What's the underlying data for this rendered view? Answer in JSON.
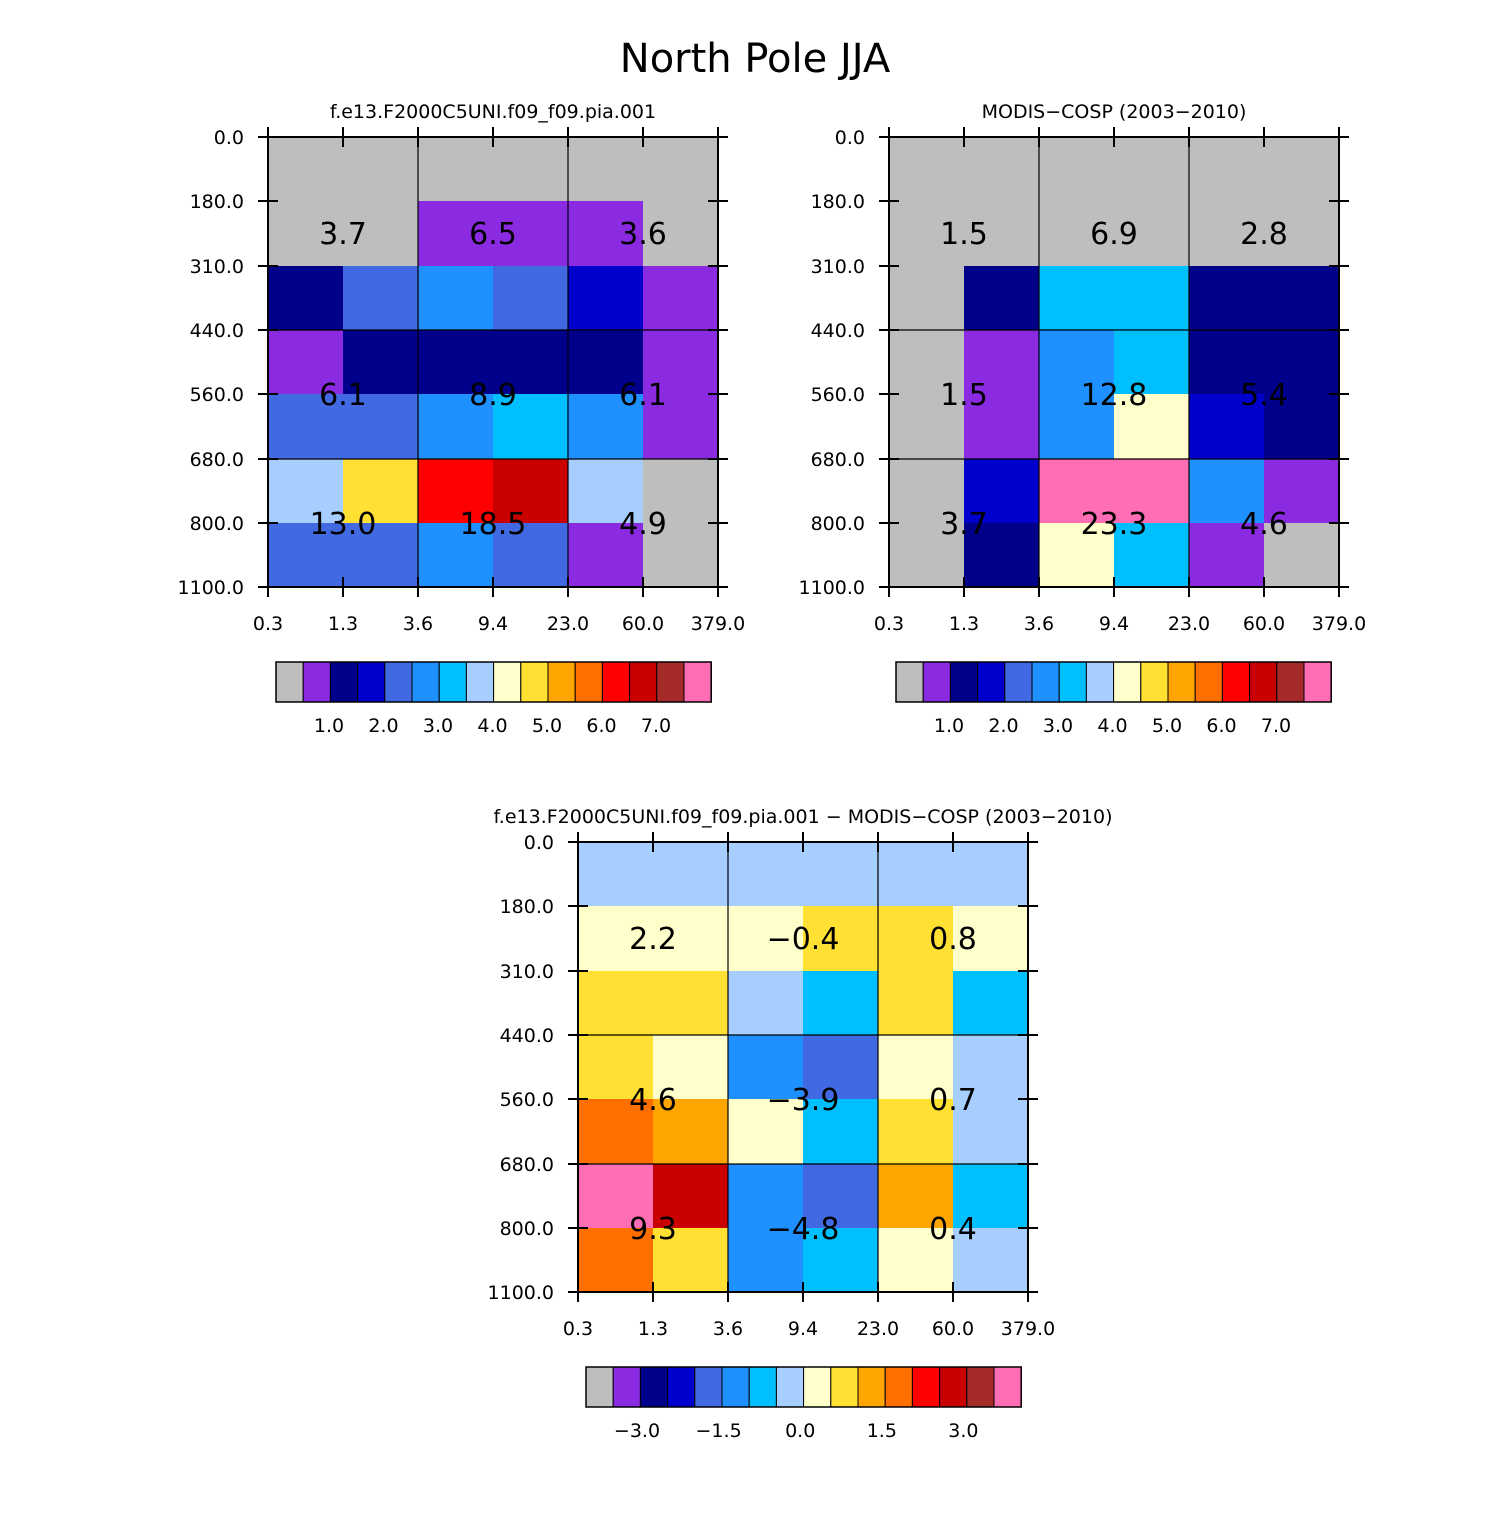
{
  "title": "North Pole JJA",
  "palette": {
    "gray": "#bebebe",
    "purple": "#8a2be2",
    "navy": "#00008b",
    "blue": "#0000cd",
    "royal": "#4169e1",
    "dodger": "#1e90ff",
    "sky": "#00bfff",
    "lightsky": "#a6cfff",
    "cream": "#ffffcc",
    "gold": "#ffe033",
    "orange": "#ffa500",
    "darkorange": "#ff6f00",
    "red": "#ff0000",
    "darkred": "#c80000",
    "brown": "#a52a2a",
    "pink": "#ff6eb4"
  },
  "colorbar_colors": [
    "gray",
    "purple",
    "navy",
    "blue",
    "royal",
    "dodger",
    "sky",
    "lightsky",
    "cream",
    "gold",
    "orange",
    "darkorange",
    "red",
    "darkred",
    "brown",
    "pink"
  ],
  "chart_data": [
    {
      "type": "heatmap",
      "title": "f.e13.F2000C5UNI.f09_f09.pia.001",
      "xticks": [
        "0.3",
        "1.3",
        "3.6",
        "9.4",
        "23.0",
        "60.0",
        "379.0"
      ],
      "yticks": [
        "0.0",
        "180.0",
        "310.0",
        "440.0",
        "560.0",
        "680.0",
        "800.0",
        "1100.0"
      ],
      "colorbar_labels": [
        "1.0",
        "2.0",
        "3.0",
        "4.0",
        "5.0",
        "6.0",
        "7.0"
      ],
      "cells": [
        [
          "gray",
          "gray",
          "gray",
          "gray",
          "gray",
          "gray"
        ],
        [
          "gray",
          "gray",
          "purple",
          "purple",
          "purple",
          "gray"
        ],
        [
          "navy",
          "royal",
          "dodger",
          "royal",
          "blue",
          "purple"
        ],
        [
          "purple",
          "navy",
          "navy",
          "navy",
          "navy",
          "purple"
        ],
        [
          "royal",
          "royal",
          "dodger",
          "sky",
          "dodger",
          "purple"
        ],
        [
          "lightsky",
          "gold",
          "red",
          "darkred",
          "lightsky",
          "gray"
        ],
        [
          "royal",
          "royal",
          "dodger",
          "royal",
          "purple",
          "gray"
        ]
      ],
      "annotations": [
        [
          "3.7",
          "6.5",
          "3.6"
        ],
        [
          "6.1",
          "8.9",
          "6.1"
        ],
        [
          "13.0",
          "18.5",
          "4.9"
        ]
      ]
    },
    {
      "type": "heatmap",
      "title": "MODIS-COSP (2003-2010)",
      "xticks": [
        "0.3",
        "1.3",
        "3.6",
        "9.4",
        "23.0",
        "60.0",
        "379.0"
      ],
      "yticks": [
        "0.0",
        "180.0",
        "310.0",
        "440.0",
        "560.0",
        "680.0",
        "800.0",
        "1100.0"
      ],
      "colorbar_labels": [
        "1.0",
        "2.0",
        "3.0",
        "4.0",
        "5.0",
        "6.0",
        "7.0"
      ],
      "cells": [
        [
          "gray",
          "gray",
          "gray",
          "gray",
          "gray",
          "gray"
        ],
        [
          "gray",
          "gray",
          "gray",
          "gray",
          "gray",
          "gray"
        ],
        [
          "gray",
          "navy",
          "sky",
          "sky",
          "navy",
          "navy"
        ],
        [
          "gray",
          "purple",
          "dodger",
          "sky",
          "navy",
          "navy"
        ],
        [
          "gray",
          "purple",
          "dodger",
          "cream",
          "blue",
          "navy"
        ],
        [
          "gray",
          "blue",
          "pink",
          "pink",
          "dodger",
          "purple"
        ],
        [
          "gray",
          "navy",
          "cream",
          "sky",
          "purple",
          "gray"
        ]
      ],
      "annotations": [
        [
          "1.5",
          "6.9",
          "2.8"
        ],
        [
          "1.5",
          "12.8",
          "5.4"
        ],
        [
          "3.7",
          "23.3",
          "4.6"
        ]
      ]
    },
    {
      "type": "heatmap",
      "title": "f.e13.F2000C5UNI.f09_f09.pia.001 - MODIS-COSP (2003-2010)",
      "xticks": [
        "0.3",
        "1.3",
        "3.6",
        "9.4",
        "23.0",
        "60.0",
        "379.0"
      ],
      "yticks": [
        "0.0",
        "180.0",
        "310.0",
        "440.0",
        "560.0",
        "680.0",
        "800.0",
        "1100.0"
      ],
      "colorbar_labels": [
        "-3.0",
        "-1.5",
        "0.0",
        "1.5",
        "3.0"
      ],
      "cells": [
        [
          "lightsky",
          "lightsky",
          "lightsky",
          "lightsky",
          "lightsky",
          "lightsky"
        ],
        [
          "cream",
          "cream",
          "cream",
          "gold",
          "gold",
          "cream"
        ],
        [
          "gold",
          "gold",
          "lightsky",
          "sky",
          "gold",
          "sky"
        ],
        [
          "gold",
          "cream",
          "dodger",
          "royal",
          "cream",
          "lightsky"
        ],
        [
          "darkorange",
          "orange",
          "cream",
          "sky",
          "gold",
          "lightsky"
        ],
        [
          "pink",
          "darkred",
          "dodger",
          "royal",
          "orange",
          "sky"
        ],
        [
          "darkorange",
          "gold",
          "dodger",
          "sky",
          "cream",
          "lightsky"
        ]
      ],
      "annotations": [
        [
          "2.2",
          "-0.4",
          "0.8"
        ],
        [
          "4.6",
          "-3.9",
          "0.7"
        ],
        [
          "9.3",
          "-4.8",
          "0.4"
        ]
      ]
    }
  ]
}
